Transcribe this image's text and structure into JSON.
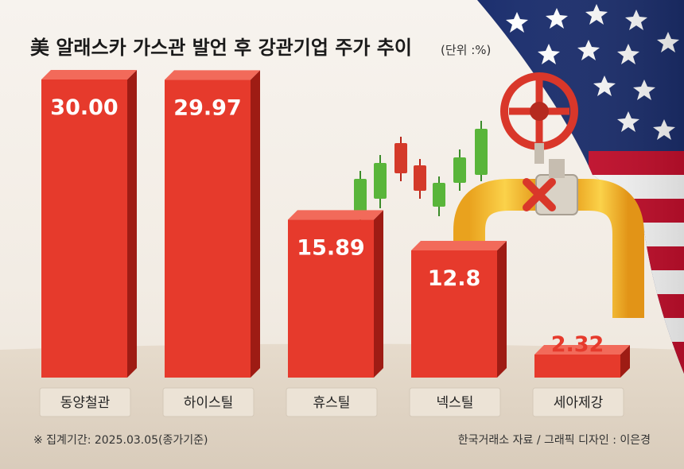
{
  "chart_data": {
    "type": "bar",
    "title": "美 알래스카 가스관 발언 후 강관기업 주가 추이",
    "unit": "(단위 :%)",
    "categories": [
      "동양철관",
      "하이스틸",
      "휴스틸",
      "넥스틸",
      "세아제강"
    ],
    "values": [
      30.0,
      29.97,
      15.89,
      12.8,
      2.32
    ],
    "value_labels": [
      "30.00",
      "29.97",
      "15.89",
      "12.8",
      "2.32"
    ],
    "ylim": [
      0,
      30
    ],
    "grid": false,
    "legend": "none"
  },
  "footer": {
    "note": "※ 집계기간: 2025.03.05(종가기준)",
    "source": "한국거래소 자료 / 그래픽 디자인 : 이은경"
  },
  "colors": {
    "bar_front": "#e63a2c",
    "bar_side": "#9e1c14",
    "bar_top": "#f26a5a",
    "label_box": "#ece3d6"
  },
  "decor": {
    "flag": "us-flag-curtain-icon",
    "valve": "red-valve-wheel-icon",
    "pipe": "yellow-gas-pipe-icon",
    "candles": "candlestick-icon"
  }
}
